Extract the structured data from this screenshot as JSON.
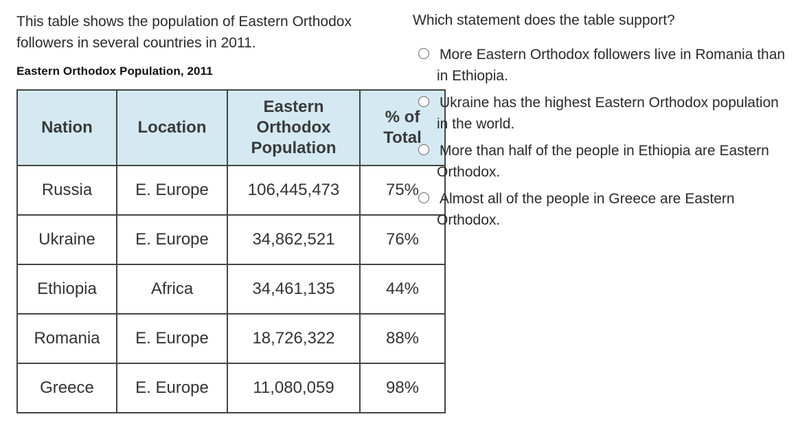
{
  "intro": "This table shows the population of Eastern Orthodox followers in several countries in 2011.",
  "table": {
    "title": "Eastern Orthodox Population, 2011",
    "headers": [
      "Nation",
      "Location",
      "Eastern Orthodox Population",
      "% of Total"
    ],
    "rows": [
      {
        "nation": "Russia",
        "location": "E. Europe",
        "population": "106,445,473",
        "percent": "75%"
      },
      {
        "nation": "Ukraine",
        "location": "E. Europe",
        "population": "34,862,521",
        "percent": "76%"
      },
      {
        "nation": "Ethiopia",
        "location": "Africa",
        "population": "34,461,135",
        "percent": "44%"
      },
      {
        "nation": "Romania",
        "location": "E. Europe",
        "population": "18,726,322",
        "percent": "88%"
      },
      {
        "nation": "Greece",
        "location": "E. Europe",
        "population": "11,080,059",
        "percent": "98%"
      }
    ]
  },
  "question": "Which statement does the table support?",
  "options": [
    "More Eastern Orthodox followers live in Romania than in Ethiopia.",
    "Ukraine has the highest Eastern Orthodox population in the world.",
    "More than half of the people in Ethiopia are Eastern Orthodox.",
    "Almost all of the people in Greece are Eastern Orthodox."
  ],
  "colors": {
    "header_bg": "#d4e9f1",
    "border": "#444444"
  }
}
